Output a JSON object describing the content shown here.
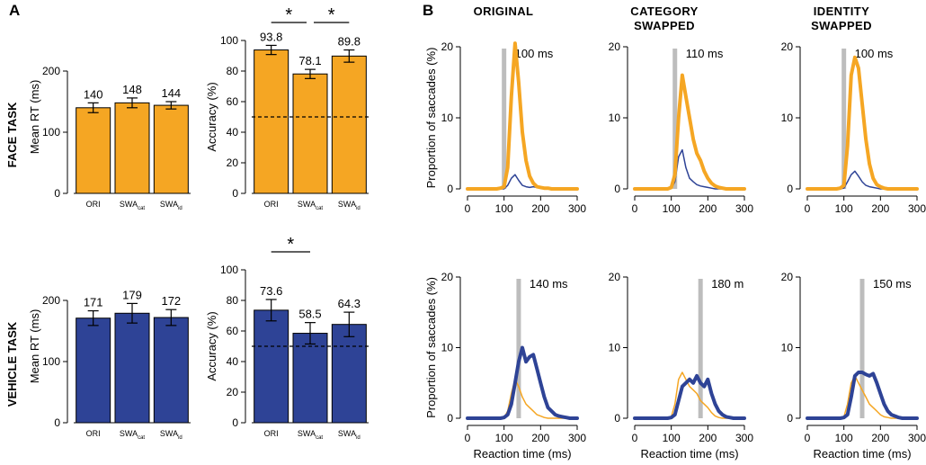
{
  "panels": {
    "a": "A",
    "b": "B"
  },
  "tasks": [
    "FACE TASK",
    "VEHICLE TASK"
  ],
  "column_titles": [
    {
      "line1": "ORIGINAL",
      "line2": ""
    },
    {
      "line1": "CATEGORY",
      "line2": "SWAPPED"
    },
    {
      "line1": "IDENTITY",
      "line2": "SWAPPED"
    }
  ],
  "colors": {
    "face": "#f5a623",
    "vehicle": "#2e4396",
    "marker": "#bdbdbd"
  },
  "bar_categories": [
    "ORI",
    "SWA_cat",
    "SWA_id"
  ],
  "xtick_labels": [
    {
      "main": "ORI",
      "sub": ""
    },
    {
      "main": "SWA",
      "sub": "cat"
    },
    {
      "main": "SWA",
      "sub": "id"
    }
  ],
  "chart_data": [
    {
      "id": "face-rt",
      "type": "bar",
      "task": "FACE TASK",
      "categories": [
        "ORI",
        "SWA_cat",
        "SWA_id"
      ],
      "values": [
        140,
        148,
        144
      ],
      "value_labels": [
        "140",
        "148",
        "144"
      ],
      "errors": [
        8,
        8,
        6
      ],
      "ylabel": "Mean RT (ms)",
      "ylim": [
        0,
        250
      ],
      "yticks": [
        0,
        100,
        200
      ],
      "color": "face"
    },
    {
      "id": "face-acc",
      "type": "bar",
      "task": "FACE TASK",
      "categories": [
        "ORI",
        "SWA_cat",
        "SWA_id"
      ],
      "values": [
        93.8,
        78.1,
        89.8
      ],
      "value_labels": [
        "93.8",
        "78.1",
        "89.8"
      ],
      "errors": [
        3,
        3,
        4
      ],
      "ylabel": "Accuracy (%)",
      "ylim": [
        0,
        100
      ],
      "yticks": [
        0,
        20,
        40,
        60,
        80,
        100
      ],
      "chance": 50,
      "significance": [
        {
          "from": 0,
          "to": 1,
          "label": "*"
        },
        {
          "from": 1,
          "to": 2,
          "label": "*"
        }
      ],
      "color": "face"
    },
    {
      "id": "vehicle-rt",
      "type": "bar",
      "task": "VEHICLE TASK",
      "categories": [
        "ORI",
        "SWA_cat",
        "SWA_id"
      ],
      "values": [
        171,
        179,
        172
      ],
      "value_labels": [
        "171",
        "179",
        "172"
      ],
      "errors": [
        12,
        16,
        13
      ],
      "ylabel": "Mean RT (ms)",
      "ylim": [
        0,
        250
      ],
      "yticks": [
        0,
        100,
        200
      ],
      "color": "vehicle"
    },
    {
      "id": "vehicle-acc",
      "type": "bar",
      "task": "VEHICLE TASK",
      "categories": [
        "ORI",
        "SWA_cat",
        "SWA_id"
      ],
      "values": [
        73.6,
        58.5,
        64.3
      ],
      "value_labels": [
        "73.6",
        "58.5",
        "64.3"
      ],
      "errors": [
        7,
        7,
        8
      ],
      "ylabel": "Accuracy (%)",
      "ylim": [
        0,
        100
      ],
      "yticks": [
        0,
        20,
        40,
        60,
        80,
        100
      ],
      "chance": 50,
      "significance": [
        {
          "from": 0,
          "to": 1,
          "label": "*"
        }
      ],
      "color": "vehicle"
    },
    {
      "id": "face-original",
      "type": "line",
      "task": "FACE TASK",
      "condition": "ORIGINAL",
      "x": [
        0,
        10,
        20,
        30,
        40,
        50,
        60,
        70,
        80,
        90,
        100,
        110,
        120,
        130,
        140,
        150,
        160,
        170,
        180,
        190,
        200,
        210,
        220,
        230,
        240,
        250,
        260,
        270,
        280,
        290,
        300
      ],
      "series": [
        {
          "name": "correct",
          "color": "face",
          "width": 4,
          "values": [
            0,
            0,
            0,
            0,
            0,
            0,
            0,
            0,
            0,
            0.1,
            0.3,
            3,
            13,
            20.5,
            15,
            8,
            4,
            1.8,
            0.8,
            0.3,
            0.2,
            0.1,
            0.1,
            0,
            0,
            0,
            0,
            0,
            0,
            0,
            0
          ]
        },
        {
          "name": "error",
          "color": "vehicle",
          "width": 1.5,
          "values": [
            0,
            0,
            0,
            0,
            0,
            0,
            0,
            0,
            0,
            0,
            0,
            0.5,
            1.5,
            2,
            1.2,
            0.5,
            0.3,
            0.2,
            0.3,
            0.2,
            0.1,
            0,
            0,
            0,
            0,
            0,
            0,
            0,
            0,
            0,
            0
          ]
        }
      ],
      "marker": 100,
      "marker_label": "100  ms",
      "xlabel": "",
      "ylabel": "Proportion of saccades (%)",
      "xlim": [
        0,
        300
      ],
      "ylim": [
        0,
        20
      ],
      "xticks": [
        0,
        100,
        200,
        300
      ],
      "yticks": [
        0,
        10,
        20
      ]
    },
    {
      "id": "face-category",
      "type": "line",
      "task": "FACE TASK",
      "condition": "CATEGORY SWAPPED",
      "x": [
        0,
        10,
        20,
        30,
        40,
        50,
        60,
        70,
        80,
        90,
        100,
        110,
        120,
        130,
        140,
        150,
        160,
        170,
        180,
        190,
        200,
        210,
        220,
        230,
        240,
        250,
        260,
        270,
        280,
        290,
        300
      ],
      "series": [
        {
          "name": "correct",
          "color": "face",
          "width": 4,
          "values": [
            0,
            0,
            0,
            0,
            0,
            0,
            0,
            0,
            0,
            0,
            0.2,
            2,
            10,
            16,
            13,
            10,
            7,
            5,
            4,
            2.5,
            1.5,
            0.8,
            0.4,
            0.2,
            0.1,
            0,
            0,
            0,
            0,
            0,
            0
          ]
        },
        {
          "name": "error",
          "color": "vehicle",
          "width": 1.5,
          "values": [
            0,
            0,
            0,
            0,
            0,
            0,
            0,
            0,
            0,
            0,
            0.1,
            1,
            4.5,
            5.5,
            3,
            1.5,
            1,
            0.6,
            0.4,
            0.3,
            0.2,
            0.1,
            0,
            0,
            0,
            0,
            0,
            0,
            0,
            0,
            0
          ]
        }
      ],
      "marker": 110,
      "marker_label": "110  ms",
      "xlabel": "",
      "ylabel": "",
      "xlim": [
        0,
        300
      ],
      "ylim": [
        0,
        20
      ],
      "xticks": [
        0,
        100,
        200,
        300
      ],
      "yticks": [
        0,
        10,
        20
      ]
    },
    {
      "id": "face-identity",
      "type": "line",
      "task": "FACE TASK",
      "condition": "IDENTITY SWAPPED",
      "x": [
        0,
        10,
        20,
        30,
        40,
        50,
        60,
        70,
        80,
        90,
        100,
        110,
        120,
        130,
        140,
        150,
        160,
        170,
        180,
        190,
        200,
        210,
        220,
        230,
        240,
        250,
        260,
        270,
        280,
        290,
        300
      ],
      "series": [
        {
          "name": "correct",
          "color": "face",
          "width": 4,
          "values": [
            0,
            0,
            0,
            0,
            0,
            0,
            0,
            0,
            0,
            0.1,
            0.5,
            6,
            16,
            18.5,
            17,
            12,
            7,
            3.5,
            1.5,
            0.6,
            0.3,
            0.1,
            0,
            0,
            0,
            0,
            0,
            0,
            0,
            0,
            0
          ]
        },
        {
          "name": "error",
          "color": "vehicle",
          "width": 1.5,
          "values": [
            0,
            0,
            0,
            0,
            0,
            0,
            0,
            0,
            0,
            0,
            0.1,
            1,
            2,
            2.5,
            1.8,
            1,
            0.5,
            0.3,
            0.2,
            0.1,
            0,
            0,
            0,
            0,
            0,
            0,
            0,
            0,
            0,
            0,
            0
          ]
        }
      ],
      "marker": 100,
      "marker_label": "100  ms",
      "xlabel": "",
      "ylabel": "",
      "xlim": [
        0,
        300
      ],
      "ylim": [
        0,
        20
      ],
      "xticks": [
        0,
        100,
        200,
        300
      ],
      "yticks": [
        0,
        10,
        20
      ]
    },
    {
      "id": "vehicle-original",
      "type": "line",
      "task": "VEHICLE TASK",
      "condition": "ORIGINAL",
      "x": [
        0,
        10,
        20,
        30,
        40,
        50,
        60,
        70,
        80,
        90,
        100,
        110,
        120,
        130,
        140,
        150,
        160,
        170,
        180,
        190,
        200,
        210,
        220,
        230,
        240,
        250,
        260,
        270,
        280,
        290,
        300
      ],
      "series": [
        {
          "name": "correct",
          "color": "vehicle",
          "width": 4,
          "values": [
            0,
            0,
            0,
            0,
            0,
            0,
            0,
            0,
            0,
            0,
            0.1,
            0.5,
            2,
            5,
            8,
            10,
            8,
            8.7,
            9,
            7,
            5,
            3,
            1.5,
            1,
            0.5,
            0.3,
            0.2,
            0.1,
            0,
            0,
            0
          ]
        },
        {
          "name": "error",
          "color": "face",
          "width": 1.5,
          "values": [
            0,
            0,
            0,
            0,
            0,
            0,
            0,
            0,
            0,
            0,
            0.1,
            1,
            3.5,
            5.5,
            4.5,
            3,
            2,
            1.5,
            1,
            0.5,
            0.3,
            0.1,
            0,
            0,
            0,
            0,
            0,
            0,
            0,
            0,
            0
          ]
        }
      ],
      "marker": 140,
      "marker_label": "140  ms",
      "xlabel": "Reaction time (ms)",
      "ylabel": "Proportion of saccades (%)",
      "xlim": [
        0,
        300
      ],
      "ylim": [
        0,
        20
      ],
      "xticks": [
        0,
        100,
        200,
        300
      ],
      "yticks": [
        0,
        10,
        20
      ]
    },
    {
      "id": "vehicle-category",
      "type": "line",
      "task": "VEHICLE TASK",
      "condition": "CATEGORY SWAPPED",
      "x": [
        0,
        10,
        20,
        30,
        40,
        50,
        60,
        70,
        80,
        90,
        100,
        110,
        120,
        130,
        140,
        150,
        160,
        170,
        180,
        190,
        200,
        210,
        220,
        230,
        240,
        250,
        260,
        270,
        280,
        290,
        300
      ],
      "series": [
        {
          "name": "correct",
          "color": "vehicle",
          "width": 4,
          "values": [
            0,
            0,
            0,
            0,
            0,
            0,
            0,
            0,
            0,
            0,
            0.1,
            0.5,
            2.5,
            4.5,
            5,
            5.5,
            5,
            6,
            5,
            4.5,
            5.5,
            3.5,
            2,
            1,
            0.5,
            0.2,
            0.1,
            0,
            0,
            0,
            0
          ]
        },
        {
          "name": "error",
          "color": "face",
          "width": 1.5,
          "values": [
            0,
            0,
            0,
            0,
            0,
            0,
            0,
            0,
            0,
            0,
            0.2,
            2,
            5.5,
            6.5,
            5.5,
            4.5,
            4,
            3.5,
            2.5,
            2,
            1.5,
            0.8,
            0.3,
            0.1,
            0,
            0,
            0,
            0,
            0,
            0,
            0
          ]
        }
      ],
      "marker": 180,
      "marker_label": "180  m",
      "xlabel": "Reaction time (ms)",
      "ylabel": "",
      "xlim": [
        0,
        300
      ],
      "ylim": [
        0,
        20
      ],
      "xticks": [
        0,
        100,
        200,
        300
      ],
      "yticks": [
        0,
        10,
        20
      ]
    },
    {
      "id": "vehicle-identity",
      "type": "line",
      "task": "VEHICLE TASK",
      "condition": "IDENTITY SWAPPED",
      "x": [
        0,
        10,
        20,
        30,
        40,
        50,
        60,
        70,
        80,
        90,
        100,
        110,
        120,
        130,
        140,
        150,
        160,
        170,
        180,
        190,
        200,
        210,
        220,
        230,
        240,
        250,
        260,
        270,
        280,
        290,
        300
      ],
      "series": [
        {
          "name": "correct",
          "color": "vehicle",
          "width": 4,
          "values": [
            0,
            0,
            0,
            0,
            0,
            0,
            0,
            0,
            0,
            0,
            0.1,
            0.5,
            3,
            6,
            6.5,
            6.5,
            6.2,
            6,
            6.3,
            5,
            3.5,
            2,
            1,
            0.5,
            0.3,
            0.1,
            0,
            0,
            0,
            0,
            0
          ]
        },
        {
          "name": "error",
          "color": "face",
          "width": 1.5,
          "values": [
            0,
            0,
            0,
            0,
            0,
            0,
            0,
            0,
            0,
            0,
            0.2,
            2,
            5,
            6,
            5,
            4,
            3,
            2,
            1.5,
            1,
            0.5,
            0.2,
            0.1,
            0,
            0,
            0,
            0,
            0,
            0,
            0,
            0
          ]
        }
      ],
      "marker": 150,
      "marker_label": "150  ms",
      "xlabel": "Reaction time (ms)",
      "ylabel": "",
      "xlim": [
        0,
        300
      ],
      "ylim": [
        0,
        20
      ],
      "xticks": [
        0,
        100,
        200,
        300
      ],
      "yticks": [
        0,
        10,
        20
      ]
    }
  ]
}
